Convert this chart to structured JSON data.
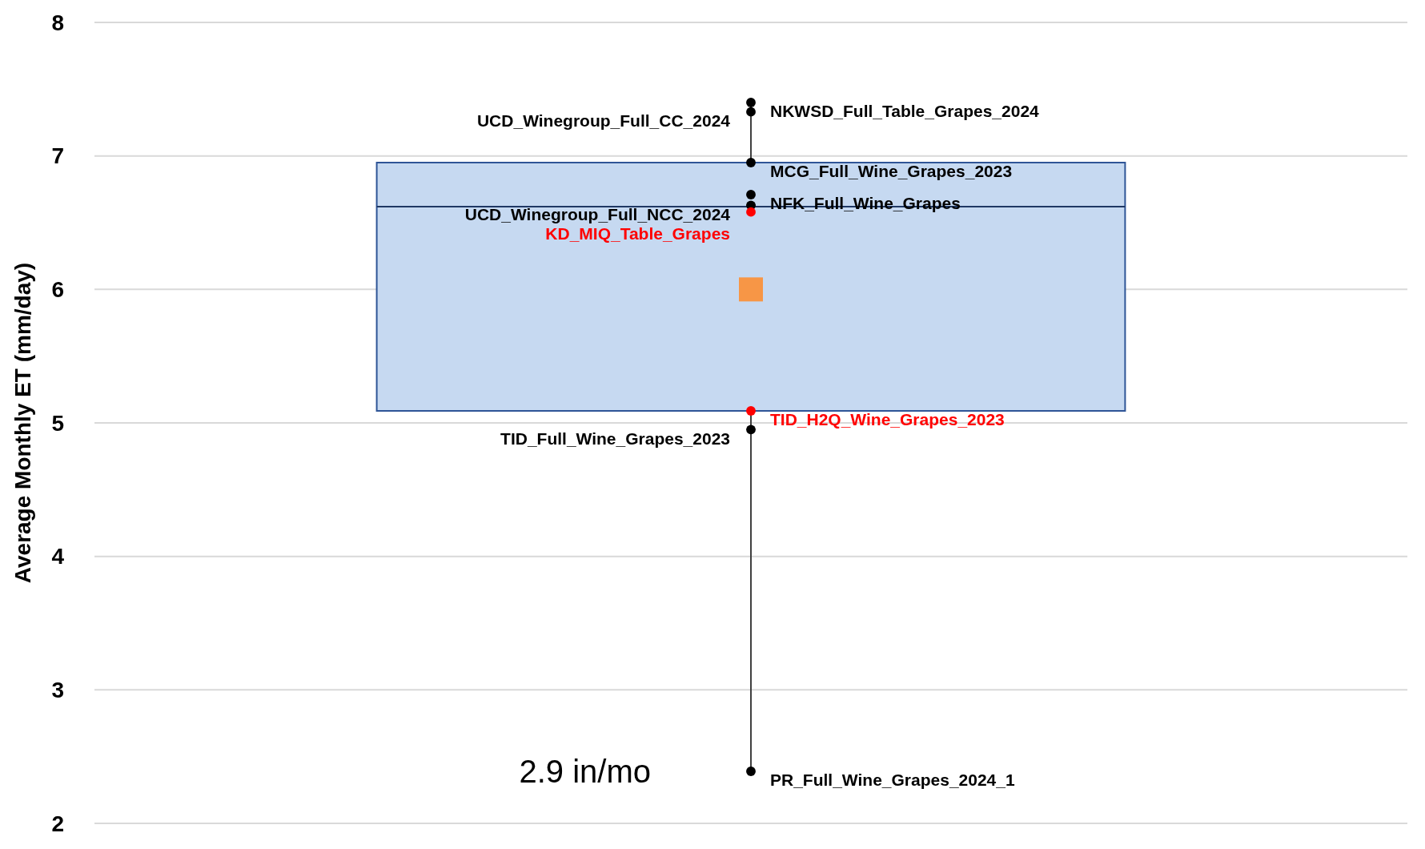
{
  "chart_data": {
    "type": "box",
    "ylabel": "Average Monthly ET (mm/day)",
    "categories": [
      null
    ],
    "ylim": [
      2,
      8
    ],
    "yticks": [
      2,
      3,
      4,
      5,
      6,
      7,
      8
    ],
    "grid": "y",
    "marker": "circle",
    "legend": false,
    "annotations": [
      "2.9 in/mo",
      "NKWSD_Full_Table_Grapes_2024",
      "UCD_Winegroup_Full_CC_2024",
      "MCG_Full_Wine_Grapes_2023",
      "NFK_Full_Wine_Grapes",
      "UCD_Winegroup_Full_NCC_2024",
      "KD_MIQ_Table_Grapes",
      "TID_H2Q_Wine_Grapes_2023",
      "TID_Full_Wine_Grapes_2023",
      "PR_Full_Wine_Grapes_2024_1"
    ],
    "series": [
      {
        "type": "box",
        "color": "#c6d9f1",
        "boxes": [
          {
            "low": 2.39,
            "q1": 5.09,
            "median": 6.62,
            "q3": 6.95,
            "high": 7.4,
            "mean": 6.0
          }
        ]
      },
      {
        "type": "scatter",
        "x": [
          null,
          null,
          null,
          null,
          null,
          null,
          null,
          null,
          null
        ],
        "values": [
          7.4,
          7.33,
          6.95,
          6.71,
          6.63,
          6.58,
          5.09,
          4.95,
          2.39
        ],
        "colors": [
          "#000000",
          "#000000",
          "#000000",
          "#000000",
          "#000000",
          "#ff0000",
          "#ff0000",
          "#000000",
          "#000000"
        ]
      }
    ]
  }
}
